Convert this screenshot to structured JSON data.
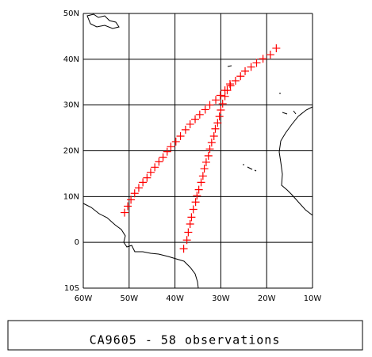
{
  "chart_data": {
    "type": "scatter",
    "title": "CA9605 - 58 observations",
    "color": "#ff0000",
    "grid": true,
    "xlim": [
      -60,
      -10
    ],
    "ylim": [
      -10,
      50
    ],
    "xticks": [
      {
        "value": -60,
        "label": "60W"
      },
      {
        "value": -50,
        "label": "50W"
      },
      {
        "value": -40,
        "label": "40W"
      },
      {
        "value": -30,
        "label": "30W"
      },
      {
        "value": -20,
        "label": "20W"
      },
      {
        "value": -10,
        "label": "10W"
      }
    ],
    "yticks": [
      {
        "value": -10,
        "label": "10S"
      },
      0,
      {
        "value": 10,
        "label": "10N"
      },
      {
        "value": 20,
        "label": "20N"
      },
      {
        "value": 30,
        "label": "30N"
      },
      {
        "value": 40,
        "label": "40N"
      },
      {
        "value": 50,
        "label": "50N"
      }
    ],
    "x": [
      -51.0,
      -50.3,
      -49.6,
      -48.8,
      -47.9,
      -47.0,
      -46.1,
      -45.3,
      -44.4,
      -43.5,
      -42.6,
      -41.7,
      -40.9,
      -39.8,
      -38.8,
      -37.7,
      -36.7,
      -35.6,
      -34.6,
      -33.4,
      -32.4,
      -31.1,
      -30.1,
      -29.1,
      -27.9,
      -26.8,
      -25.7,
      -24.7,
      -23.4,
      -22.2,
      -20.8,
      -19.2,
      -17.9,
      -38.1,
      -37.4,
      -37.1,
      -36.7,
      -36.4,
      -36.0,
      -35.5,
      -35.2,
      -34.8,
      -34.3,
      -33.9,
      -33.6,
      -33.2,
      -32.7,
      -32.4,
      -32.0,
      -31.5,
      -31.2,
      -30.7,
      -30.3,
      -30.0,
      -29.6,
      -29.1,
      -28.6,
      -28.0
    ],
    "y": [
      6.5,
      7.9,
      9.3,
      10.7,
      11.9,
      13.1,
      14.1,
      15.3,
      16.4,
      17.6,
      18.6,
      19.8,
      20.9,
      22.0,
      23.2,
      24.6,
      25.8,
      26.9,
      27.9,
      29.0,
      30.0,
      31.1,
      32.1,
      33.2,
      34.2,
      35.3,
      36.3,
      37.4,
      38.3,
      39.2,
      40.1,
      41.0,
      42.4,
      -1.4,
      0.5,
      2.2,
      4.0,
      5.5,
      7.2,
      8.8,
      10.2,
      11.5,
      13.1,
      14.5,
      16.1,
      17.5,
      18.9,
      20.4,
      21.8,
      23.2,
      24.8,
      26.1,
      27.5,
      28.9,
      30.3,
      31.9,
      33.2,
      34.6
    ]
  }
}
